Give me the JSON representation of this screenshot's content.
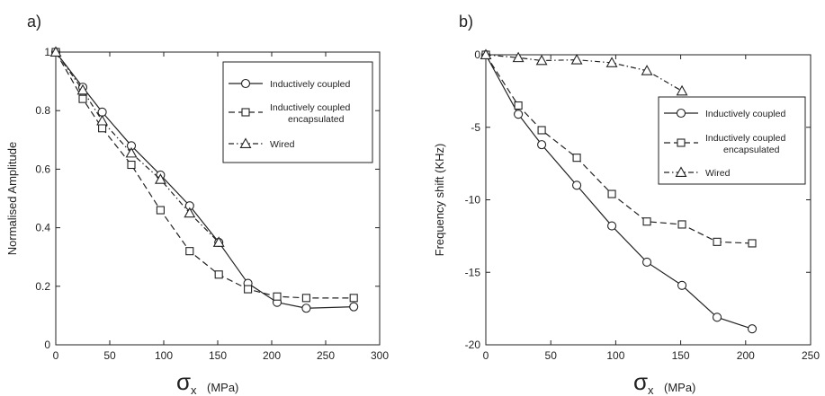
{
  "chart_data": [
    {
      "type": "line",
      "panel_label": "a)",
      "xlabel_symbol": "σ",
      "xlabel_subscript": "x",
      "xlabel_unit": "(MPa)",
      "ylabel": "Normalised Amplitude",
      "xlim": [
        0,
        300
      ],
      "ylim": [
        0,
        1
      ],
      "xticks": [
        "0",
        "50",
        "100",
        "150",
        "200",
        "250",
        "300"
      ],
      "yticks": [
        "0",
        "0.2",
        "0.4",
        "0.6",
        "0.8",
        "1"
      ],
      "legend_position": "top-right",
      "series": [
        {
          "name": "Inductively coupled",
          "marker": "circle",
          "dash": "solid",
          "x": [
            0,
            25,
            43,
            70,
            97,
            124,
            151,
            178,
            205,
            232,
            276
          ],
          "y": [
            1.0,
            0.88,
            0.795,
            0.68,
            0.58,
            0.475,
            0.35,
            0.21,
            0.145,
            0.125,
            0.13
          ]
        },
        {
          "name": "Inductively coupled encapsulated",
          "name_lines": [
            "Inductively coupled",
            "encapsulated"
          ],
          "marker": "square",
          "dash": "dashed",
          "x": [
            0,
            25,
            43,
            70,
            97,
            124,
            151,
            178,
            205,
            232,
            276
          ],
          "y": [
            1.0,
            0.84,
            0.74,
            0.615,
            0.46,
            0.32,
            0.24,
            0.19,
            0.165,
            0.16,
            0.16
          ]
        },
        {
          "name": "Wired",
          "marker": "triangle",
          "dash": "dashdot",
          "x": [
            0,
            25,
            43,
            70,
            97,
            124,
            151
          ],
          "y": [
            1.0,
            0.87,
            0.765,
            0.655,
            0.565,
            0.45,
            0.35
          ]
        }
      ]
    },
    {
      "type": "line",
      "panel_label": "b)",
      "xlabel_symbol": "σ",
      "xlabel_subscript": "x",
      "xlabel_unit": "(MPa)",
      "ylabel": "Frequency shift (KHz)",
      "xlim": [
        0,
        250
      ],
      "ylim": [
        -20,
        0
      ],
      "xticks": [
        "0",
        "50",
        "100",
        "150",
        "200",
        "250"
      ],
      "yticks": [
        "0",
        "-5",
        "-10",
        "-15",
        "-20"
      ],
      "legend_position": "right",
      "series": [
        {
          "name": "Inductively coupled",
          "marker": "circle",
          "dash": "solid",
          "x": [
            0,
            25,
            43,
            70,
            97,
            124,
            151,
            178,
            205
          ],
          "y": [
            0,
            -4.1,
            -6.2,
            -9.0,
            -11.8,
            -14.3,
            -15.9,
            -18.1,
            -18.9
          ]
        },
        {
          "name": "Inductively coupled encapsulated",
          "name_lines": [
            "Inductively coupled",
            "encapsulated"
          ],
          "marker": "square",
          "dash": "dashed",
          "x": [
            0,
            25,
            43,
            70,
            97,
            124,
            151,
            178,
            205
          ],
          "y": [
            0,
            -3.5,
            -5.2,
            -7.1,
            -9.6,
            -11.5,
            -11.7,
            -12.9,
            -13.0
          ]
        },
        {
          "name": "Wired",
          "marker": "triangle",
          "dash": "dashdot",
          "x": [
            0,
            25,
            43,
            70,
            97,
            124,
            151
          ],
          "y": [
            0,
            -0.2,
            -0.4,
            -0.35,
            -0.55,
            -1.1,
            -2.5
          ]
        }
      ]
    }
  ]
}
